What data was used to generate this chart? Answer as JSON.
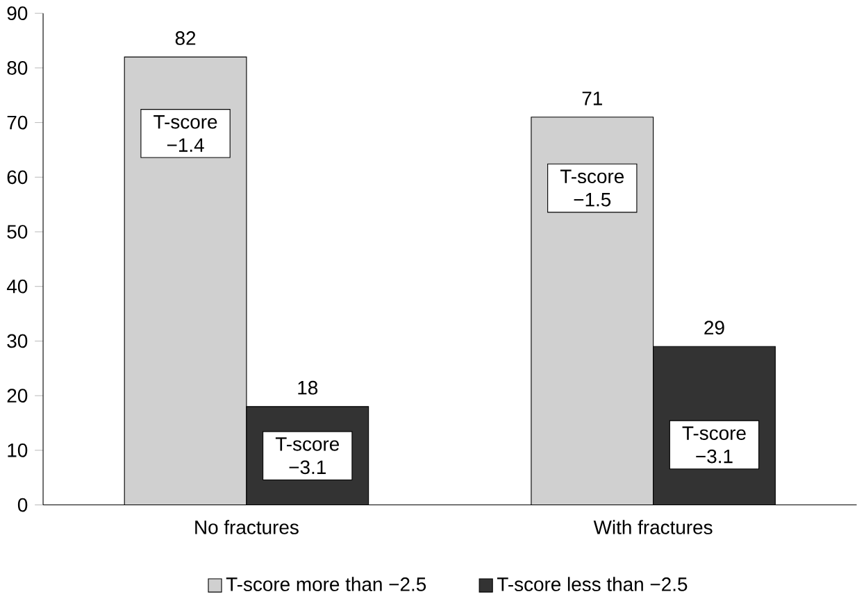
{
  "chart_data": {
    "type": "bar",
    "categories": [
      "No fractures",
      "With fractures"
    ],
    "series": [
      {
        "name": "T-score more than −2.5",
        "color": "#d0d0d0",
        "values": [
          82,
          71
        ]
      },
      {
        "name": "T-score less than −2.5",
        "color": "#333333",
        "values": [
          18,
          29
        ]
      }
    ],
    "ylim": [
      0,
      90
    ],
    "yticks": [
      0,
      10,
      20,
      30,
      40,
      50,
      60,
      70,
      80,
      90
    ],
    "data_labels": true,
    "legend": "bottom",
    "grid": false,
    "annotations": [
      {
        "text": "T-score −1.4",
        "x": "No fractures",
        "y": 68
      },
      {
        "text": "T-score −3.1",
        "x": "No fractures",
        "y": 9
      },
      {
        "text": "T-score −1.5",
        "x": "With fractures",
        "y": 58
      },
      {
        "text": "T-score −3.1",
        "x": "With fractures",
        "y": 11
      }
    ]
  }
}
